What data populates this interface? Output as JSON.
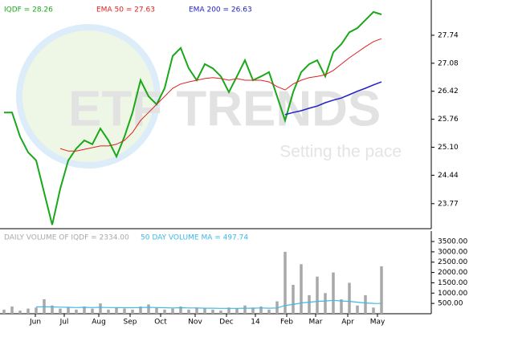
{
  "chart_data": [
    {
      "type": "line",
      "watermark": {
        "title": "ETF TRENDS",
        "subtitle": "Setting the pace"
      },
      "x": [
        0,
        1,
        2,
        3,
        4,
        5,
        6,
        7,
        8,
        9,
        10,
        11,
        12,
        13,
        14,
        15,
        16,
        17,
        18,
        19,
        20,
        21,
        22,
        23,
        24,
        25,
        26,
        27,
        28,
        29,
        30,
        31,
        32,
        33,
        34,
        35,
        36,
        37,
        38,
        39,
        40,
        41,
        42,
        43,
        44,
        45,
        46,
        47
      ],
      "xlim": [
        0,
        47
      ],
      "ylim": [
        23.18,
        28.42
      ],
      "yticks": [
        23.77,
        24.44,
        {
          "value": 25.1,
          "label": "25.10"
        },
        25.76,
        26.42,
        27.08,
        27.74
      ],
      "series": [
        {
          "name": "IQDF = 28.26",
          "color": "#1aa81a",
          "width": 2,
          "values": [
            25.92,
            25.92,
            25.35,
            24.98,
            24.79,
            24.03,
            23.27,
            24.12,
            24.79,
            25.07,
            25.26,
            25.17,
            25.54,
            25.26,
            24.88,
            25.35,
            25.92,
            26.68,
            26.3,
            26.11,
            26.49,
            27.25,
            27.44,
            26.96,
            26.68,
            27.06,
            26.96,
            26.77,
            26.4,
            26.77,
            27.15,
            26.68,
            26.77,
            26.87,
            26.3,
            25.73,
            26.4,
            26.87,
            27.06,
            27.15,
            26.77,
            27.34,
            27.53,
            27.81,
            27.91,
            28.1,
            28.29,
            28.23
          ]
        },
        {
          "name": "EMA 50 = 27.63",
          "color": "#e02020",
          "width": 1,
          "values": [
            null,
            null,
            null,
            null,
            null,
            null,
            null,
            25.07,
            25.01,
            25.01,
            25.05,
            25.09,
            25.13,
            25.13,
            25.17,
            25.26,
            25.45,
            25.73,
            25.92,
            26.11,
            26.3,
            26.49,
            26.59,
            26.64,
            26.68,
            26.72,
            26.74,
            26.72,
            26.68,
            26.72,
            26.68,
            26.68,
            26.68,
            26.64,
            26.53,
            26.45,
            26.59,
            26.68,
            26.74,
            26.77,
            26.81,
            26.91,
            27.06,
            27.21,
            27.34,
            27.47,
            27.59,
            27.66
          ]
        },
        {
          "name": "EMA 200 = 26.63",
          "color": "#2020c8",
          "width": 1.5,
          "values": [
            null,
            null,
            null,
            null,
            null,
            null,
            null,
            null,
            null,
            null,
            null,
            null,
            null,
            null,
            null,
            null,
            null,
            null,
            null,
            null,
            null,
            null,
            null,
            null,
            null,
            null,
            null,
            null,
            null,
            null,
            null,
            null,
            null,
            null,
            null,
            25.87,
            25.92,
            25.96,
            26.02,
            26.07,
            26.15,
            26.21,
            26.26,
            26.34,
            26.42,
            26.49,
            26.57,
            26.64
          ]
        }
      ]
    },
    {
      "type": "bar",
      "x": [
        0,
        1,
        2,
        3,
        4,
        5,
        6,
        7,
        8,
        9,
        10,
        11,
        12,
        13,
        14,
        15,
        16,
        17,
        18,
        19,
        20,
        21,
        22,
        23,
        24,
        25,
        26,
        27,
        28,
        29,
        30,
        31,
        32,
        33,
        34,
        35,
        36,
        37,
        38,
        39,
        40,
        41,
        42,
        43,
        44,
        45,
        46,
        47
      ],
      "xlim": [
        0,
        47
      ],
      "xticks": [
        {
          "value": 3.9,
          "label": "Jun"
        },
        {
          "value": 7.5,
          "label": "Jul"
        },
        {
          "value": 11.8,
          "label": "Aug"
        },
        {
          "value": 15.7,
          "label": "Sep"
        },
        {
          "value": 19.5,
          "label": "Oct"
        },
        {
          "value": 23.8,
          "label": "Nov"
        },
        {
          "value": 27.7,
          "label": "Dec"
        },
        {
          "value": 31.3,
          "label": "14"
        },
        {
          "value": 35.2,
          "label": "Feb"
        },
        {
          "value": 38.8,
          "label": "Mar"
        },
        {
          "value": 42.8,
          "label": "Apr"
        },
        {
          "value": 46.5,
          "label": "May"
        }
      ],
      "ylim": [
        0,
        3500
      ],
      "yticks": [
        {
          "value": 500,
          "label": "500.00"
        },
        {
          "value": 1000,
          "label": "1000.00"
        },
        {
          "value": 1500,
          "label": "1500.00"
        },
        {
          "value": 2000,
          "label": "2000.00"
        },
        {
          "value": 2500,
          "label": "2500.00"
        },
        {
          "value": 3000,
          "label": "3000.00"
        },
        {
          "value": 3500,
          "label": "3500.00"
        }
      ],
      "series": [
        {
          "name": "DAILY VOLUME OF IQDF = 2334.00",
          "color": "#a8a8a8",
          "values": [
            200,
            350,
            150,
            250,
            300,
            700,
            400,
            250,
            300,
            200,
            350,
            250,
            500,
            200,
            300,
            250,
            200,
            350,
            450,
            300,
            200,
            250,
            350,
            200,
            300,
            250,
            200,
            150,
            300,
            250,
            400,
            300,
            350,
            200,
            600,
            3000,
            1400,
            2400,
            900,
            1800,
            1000,
            2000,
            700,
            1500,
            400,
            900,
            300,
            2300
          ]
        },
        {
          "name": "50 DAY VOLUME MA = 497.74",
          "color": "#40b8e8",
          "type": "line",
          "values": [
            null,
            null,
            null,
            null,
            330,
            340,
            330,
            320,
            310,
            300,
            310,
            300,
            310,
            300,
            300,
            290,
            290,
            300,
            310,
            300,
            290,
            280,
            290,
            280,
            280,
            270,
            270,
            260,
            260,
            260,
            270,
            270,
            280,
            270,
            280,
            400,
            450,
            520,
            560,
            600,
            620,
            650,
            620,
            600,
            560,
            520,
            500,
            498
          ]
        }
      ]
    }
  ]
}
